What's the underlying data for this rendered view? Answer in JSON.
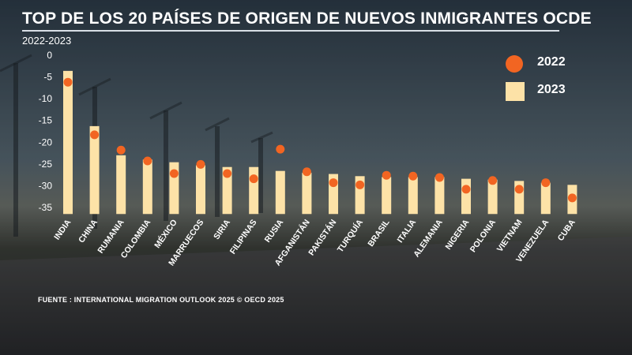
{
  "header": {
    "title": "TOP DE LOS 20 PAÍSES DE ORIGEN DE NUEVOS INMIGRANTES OCDE",
    "subtitle": "2022-2023"
  },
  "footer": {
    "source": "FUENTE : INTERNATIONAL MIGRATION OUTLOOK 2025 © OECD 2025"
  },
  "colors": {
    "bar_2023": "#fde2a7",
    "dot_2022": "#f26522"
  },
  "chart_data": {
    "type": "bar",
    "categories": [
      "INDIA",
      "CHINA",
      "RUMANIA",
      "COLOMBIA",
      "MÉXICO",
      "MARRUECOS",
      "SIRIA",
      "FILIPINAS",
      "RUSIA",
      "AFGANISTÁN",
      "PAKISTÁN",
      "TURQUÍA",
      "BRASIL",
      "ITALIA",
      "ALEMANIA",
      "NIGERIA",
      "POLONIA",
      "VIETNAM",
      "VENEZUELA",
      "CUBA"
    ],
    "series": [
      {
        "name": "2023",
        "type": "bar",
        "values": [
          -3.6,
          -16.3,
          -23.0,
          -24.0,
          -24.6,
          -25.3,
          -25.7,
          -25.7,
          -26.6,
          -27.0,
          -27.3,
          -27.8,
          -28.0,
          -28.0,
          -28.0,
          -28.4,
          -28.6,
          -28.9,
          -29.3,
          -29.8
        ]
      },
      {
        "name": "2022",
        "type": "dot",
        "values": [
          -6.2,
          -18.3,
          -21.8,
          -24.3,
          -27.2,
          -25.1,
          -27.2,
          -28.4,
          -21.6,
          -26.8,
          -29.3,
          -29.8,
          -27.6,
          -27.8,
          -28.1,
          -30.8,
          -28.8,
          -30.8,
          -29.3,
          -32.8
        ]
      }
    ],
    "yticks": [
      0,
      -5,
      -10,
      -15,
      -20,
      -25,
      -30,
      -35
    ],
    "ylim": [
      -36.5,
      0
    ],
    "legend_position": "top-right",
    "grid": false
  }
}
